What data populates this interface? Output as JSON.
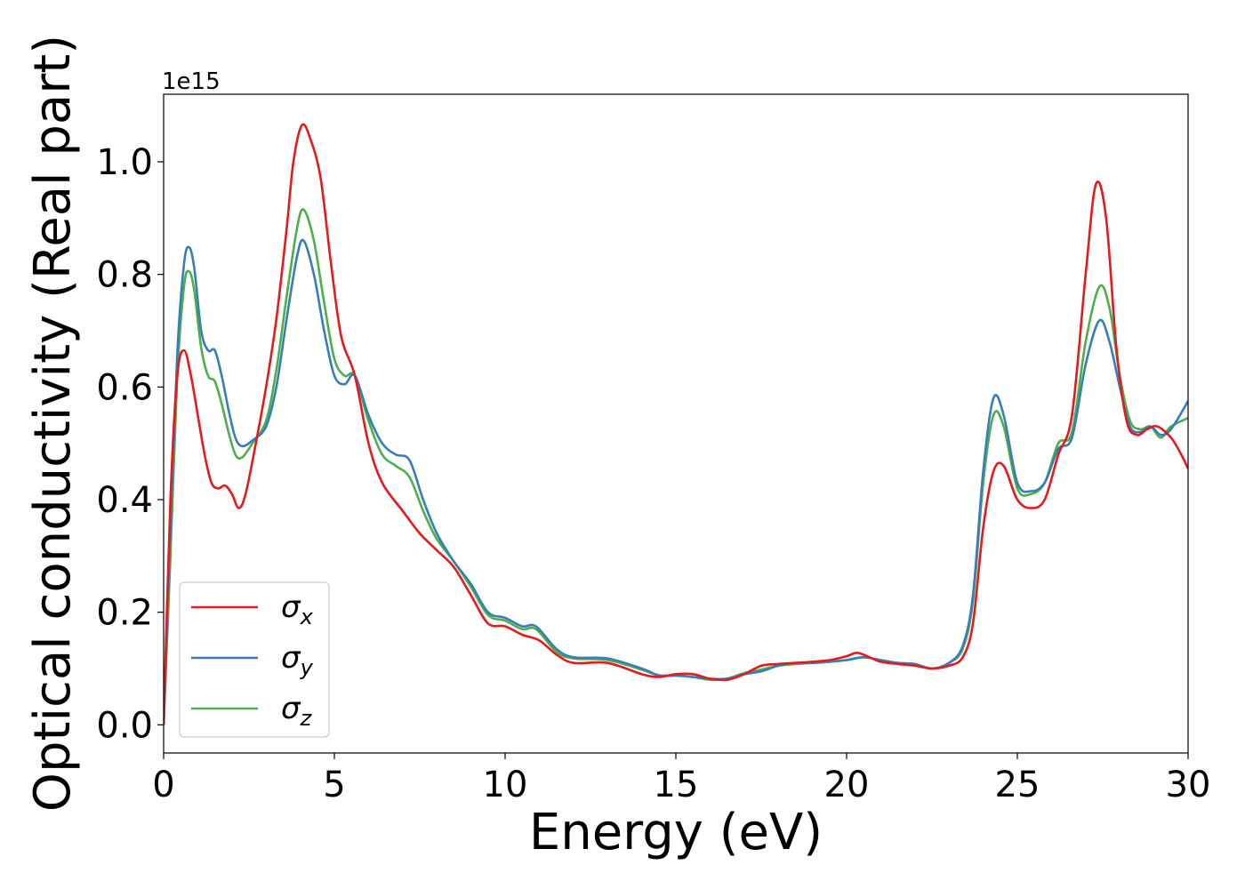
{
  "chart_data": {
    "type": "line",
    "xlabel": "Energy (eV)",
    "ylabel": "Optical conductivity (Real part)",
    "y_offset_text": "1e15",
    "xlim": [
      0,
      30
    ],
    "ylim": [
      -0.05,
      1.12
    ],
    "x_ticks": [
      0,
      5,
      10,
      15,
      20,
      25,
      30
    ],
    "x_tick_labels": [
      "0",
      "5",
      "10",
      "15",
      "20",
      "25",
      "30"
    ],
    "y_ticks": [
      0.0,
      0.2,
      0.4,
      0.6,
      0.8,
      1.0
    ],
    "y_tick_labels": [
      "0.0",
      "0.2",
      "0.4",
      "0.6",
      "0.8",
      "1.0"
    ],
    "grid": false,
    "legend_position": "bottom-left",
    "series": [
      {
        "name": "σ",
        "subscript": "x",
        "color": "#e41a1c",
        "points": [
          [
            0,
            0
          ],
          [
            0.2,
            0.4
          ],
          [
            0.4,
            0.62
          ],
          [
            0.6,
            0.665
          ],
          [
            0.8,
            0.62
          ],
          [
            1.0,
            0.55
          ],
          [
            1.2,
            0.48
          ],
          [
            1.4,
            0.43
          ],
          [
            1.6,
            0.42
          ],
          [
            1.8,
            0.425
          ],
          [
            2.0,
            0.41
          ],
          [
            2.2,
            0.385
          ],
          [
            2.4,
            0.41
          ],
          [
            2.7,
            0.5
          ],
          [
            3.0,
            0.6
          ],
          [
            3.3,
            0.72
          ],
          [
            3.6,
            0.88
          ],
          [
            3.8,
            1.0
          ],
          [
            4.05,
            1.065
          ],
          [
            4.3,
            1.04
          ],
          [
            4.6,
            0.97
          ],
          [
            4.9,
            0.82
          ],
          [
            5.2,
            0.69
          ],
          [
            5.6,
            0.62
          ],
          [
            6.0,
            0.5
          ],
          [
            6.4,
            0.43
          ],
          [
            7.0,
            0.38
          ],
          [
            7.5,
            0.34
          ],
          [
            8.0,
            0.31
          ],
          [
            8.5,
            0.28
          ],
          [
            9.0,
            0.23
          ],
          [
            9.5,
            0.18
          ],
          [
            10.0,
            0.175
          ],
          [
            10.5,
            0.16
          ],
          [
            11.0,
            0.15
          ],
          [
            11.5,
            0.125
          ],
          [
            12.0,
            0.11
          ],
          [
            13.0,
            0.11
          ],
          [
            14.0,
            0.09
          ],
          [
            14.5,
            0.085
          ],
          [
            15.0,
            0.09
          ],
          [
            15.5,
            0.09
          ],
          [
            16.0,
            0.082
          ],
          [
            16.5,
            0.08
          ],
          [
            17.0,
            0.09
          ],
          [
            17.5,
            0.105
          ],
          [
            18.0,
            0.108
          ],
          [
            18.5,
            0.11
          ],
          [
            19.0,
            0.112
          ],
          [
            19.5,
            0.115
          ],
          [
            20.0,
            0.122
          ],
          [
            20.3,
            0.128
          ],
          [
            20.6,
            0.122
          ],
          [
            21.0,
            0.112
          ],
          [
            21.5,
            0.108
          ],
          [
            22.0,
            0.105
          ],
          [
            22.5,
            0.1
          ],
          [
            23.0,
            0.105
          ],
          [
            23.4,
            0.12
          ],
          [
            23.7,
            0.18
          ],
          [
            24.0,
            0.35
          ],
          [
            24.3,
            0.45
          ],
          [
            24.6,
            0.46
          ],
          [
            25.0,
            0.4
          ],
          [
            25.4,
            0.385
          ],
          [
            25.8,
            0.4
          ],
          [
            26.2,
            0.48
          ],
          [
            26.6,
            0.55
          ],
          [
            27.0,
            0.8
          ],
          [
            27.3,
            0.96
          ],
          [
            27.6,
            0.9
          ],
          [
            27.9,
            0.67
          ],
          [
            28.2,
            0.54
          ],
          [
            28.5,
            0.515
          ],
          [
            28.8,
            0.525
          ],
          [
            29.1,
            0.53
          ],
          [
            29.5,
            0.51
          ],
          [
            29.8,
            0.48
          ],
          [
            30.0,
            0.455
          ]
        ]
      },
      {
        "name": "σ",
        "subscript": "y",
        "color": "#377eb8",
        "points": [
          [
            0,
            0
          ],
          [
            0.2,
            0.35
          ],
          [
            0.4,
            0.66
          ],
          [
            0.6,
            0.82
          ],
          [
            0.75,
            0.848
          ],
          [
            0.9,
            0.81
          ],
          [
            1.1,
            0.7
          ],
          [
            1.3,
            0.665
          ],
          [
            1.5,
            0.665
          ],
          [
            1.7,
            0.62
          ],
          [
            1.9,
            0.56
          ],
          [
            2.1,
            0.51
          ],
          [
            2.3,
            0.495
          ],
          [
            2.6,
            0.505
          ],
          [
            3.0,
            0.53
          ],
          [
            3.3,
            0.6
          ],
          [
            3.6,
            0.72
          ],
          [
            3.9,
            0.83
          ],
          [
            4.1,
            0.86
          ],
          [
            4.4,
            0.8
          ],
          [
            4.7,
            0.7
          ],
          [
            5.0,
            0.62
          ],
          [
            5.3,
            0.605
          ],
          [
            5.6,
            0.62
          ],
          [
            6.0,
            0.55
          ],
          [
            6.4,
            0.5
          ],
          [
            6.8,
            0.48
          ],
          [
            7.2,
            0.47
          ],
          [
            7.6,
            0.4
          ],
          [
            8.0,
            0.34
          ],
          [
            8.5,
            0.29
          ],
          [
            9.0,
            0.25
          ],
          [
            9.5,
            0.2
          ],
          [
            10.0,
            0.19
          ],
          [
            10.5,
            0.175
          ],
          [
            10.9,
            0.175
          ],
          [
            11.5,
            0.135
          ],
          [
            12.0,
            0.12
          ],
          [
            13.0,
            0.118
          ],
          [
            14.0,
            0.1
          ],
          [
            14.5,
            0.088
          ],
          [
            15.0,
            0.088
          ],
          [
            15.5,
            0.085
          ],
          [
            16.0,
            0.082
          ],
          [
            16.5,
            0.082
          ],
          [
            17.0,
            0.09
          ],
          [
            17.5,
            0.095
          ],
          [
            18.0,
            0.105
          ],
          [
            18.5,
            0.11
          ],
          [
            19.0,
            0.11
          ],
          [
            19.5,
            0.112
          ],
          [
            20.0,
            0.115
          ],
          [
            20.5,
            0.12
          ],
          [
            21.0,
            0.115
          ],
          [
            21.5,
            0.11
          ],
          [
            22.0,
            0.108
          ],
          [
            22.5,
            0.1
          ],
          [
            23.0,
            0.11
          ],
          [
            23.4,
            0.14
          ],
          [
            23.7,
            0.23
          ],
          [
            24.0,
            0.45
          ],
          [
            24.3,
            0.58
          ],
          [
            24.6,
            0.55
          ],
          [
            25.0,
            0.43
          ],
          [
            25.4,
            0.415
          ],
          [
            25.8,
            0.43
          ],
          [
            26.2,
            0.49
          ],
          [
            26.6,
            0.51
          ],
          [
            27.0,
            0.64
          ],
          [
            27.4,
            0.718
          ],
          [
            27.7,
            0.68
          ],
          [
            28.0,
            0.6
          ],
          [
            28.3,
            0.53
          ],
          [
            28.6,
            0.52
          ],
          [
            28.9,
            0.53
          ],
          [
            29.2,
            0.515
          ],
          [
            29.5,
            0.525
          ],
          [
            30.0,
            0.575
          ]
        ]
      },
      {
        "name": "σ",
        "subscript": "z",
        "color": "#4daf4a",
        "points": [
          [
            0,
            0
          ],
          [
            0.2,
            0.3
          ],
          [
            0.4,
            0.62
          ],
          [
            0.6,
            0.78
          ],
          [
            0.75,
            0.805
          ],
          [
            0.9,
            0.77
          ],
          [
            1.1,
            0.67
          ],
          [
            1.3,
            0.62
          ],
          [
            1.5,
            0.61
          ],
          [
            1.7,
            0.57
          ],
          [
            1.9,
            0.52
          ],
          [
            2.1,
            0.48
          ],
          [
            2.3,
            0.475
          ],
          [
            2.6,
            0.5
          ],
          [
            3.0,
            0.54
          ],
          [
            3.3,
            0.63
          ],
          [
            3.6,
            0.76
          ],
          [
            3.9,
            0.88
          ],
          [
            4.1,
            0.915
          ],
          [
            4.4,
            0.86
          ],
          [
            4.7,
            0.75
          ],
          [
            5.0,
            0.65
          ],
          [
            5.3,
            0.62
          ],
          [
            5.6,
            0.62
          ],
          [
            6.0,
            0.54
          ],
          [
            6.4,
            0.48
          ],
          [
            6.8,
            0.46
          ],
          [
            7.2,
            0.44
          ],
          [
            7.6,
            0.38
          ],
          [
            8.0,
            0.33
          ],
          [
            8.5,
            0.29
          ],
          [
            9.0,
            0.245
          ],
          [
            9.5,
            0.195
          ],
          [
            10.0,
            0.185
          ],
          [
            10.5,
            0.17
          ],
          [
            10.9,
            0.17
          ],
          [
            11.5,
            0.13
          ],
          [
            12.0,
            0.118
          ],
          [
            13.0,
            0.115
          ],
          [
            14.0,
            0.098
          ],
          [
            14.5,
            0.088
          ],
          [
            15.0,
            0.087
          ],
          [
            15.5,
            0.085
          ],
          [
            16.0,
            0.08
          ],
          [
            16.5,
            0.082
          ],
          [
            17.0,
            0.092
          ],
          [
            17.5,
            0.098
          ],
          [
            18.0,
            0.105
          ],
          [
            18.5,
            0.108
          ],
          [
            19.0,
            0.11
          ],
          [
            19.5,
            0.112
          ],
          [
            20.0,
            0.115
          ],
          [
            20.5,
            0.12
          ],
          [
            21.0,
            0.115
          ],
          [
            21.5,
            0.11
          ],
          [
            22.0,
            0.108
          ],
          [
            22.5,
            0.1
          ],
          [
            23.0,
            0.11
          ],
          [
            23.4,
            0.135
          ],
          [
            23.7,
            0.22
          ],
          [
            24.0,
            0.43
          ],
          [
            24.3,
            0.55
          ],
          [
            24.6,
            0.53
          ],
          [
            25.0,
            0.42
          ],
          [
            25.4,
            0.41
          ],
          [
            25.8,
            0.43
          ],
          [
            26.2,
            0.5
          ],
          [
            26.6,
            0.52
          ],
          [
            27.0,
            0.68
          ],
          [
            27.4,
            0.778
          ],
          [
            27.7,
            0.74
          ],
          [
            28.0,
            0.62
          ],
          [
            28.3,
            0.54
          ],
          [
            28.6,
            0.525
          ],
          [
            28.9,
            0.53
          ],
          [
            29.2,
            0.51
          ],
          [
            29.5,
            0.53
          ],
          [
            30.0,
            0.545
          ]
        ]
      }
    ]
  }
}
